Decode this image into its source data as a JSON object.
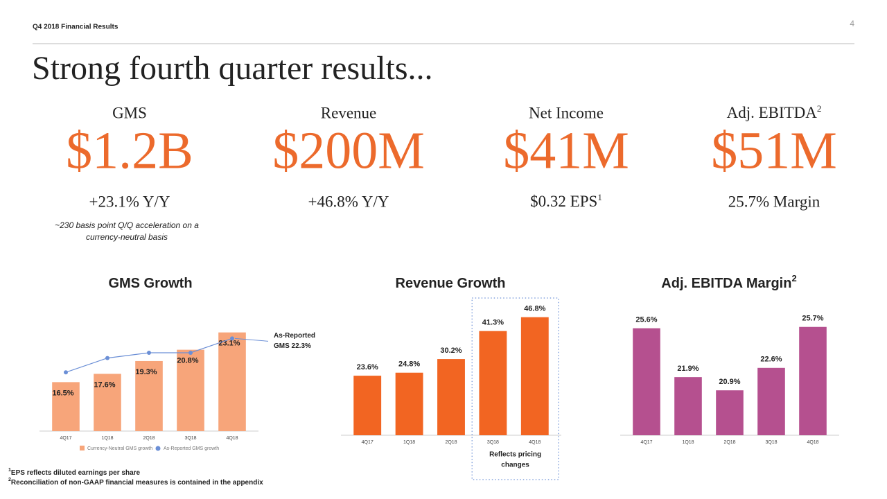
{
  "header": {
    "section": "Q4 2018 Financial Results",
    "page_number": "4",
    "title": "Strong fourth quarter results..."
  },
  "kpis": [
    {
      "label": "GMS",
      "value": "$1.2B",
      "detail": "+23.1% Y/Y",
      "note": [
        "~230 basis point Q/Q acceleration on a",
        "currency-neutral basis"
      ]
    },
    {
      "label": "Revenue",
      "value": "$200M",
      "detail": "+46.8% Y/Y"
    },
    {
      "label": "Net Income",
      "value": "$41M",
      "detail": "$0.32 EPS",
      "detail_sup": "1"
    },
    {
      "label": "Adj. EBITDA",
      "label_sup": "2",
      "value": "$51M",
      "detail": "25.7% Margin"
    }
  ],
  "footnotes": [
    {
      "mark": "1",
      "text": "EPS reflects diluted earnings per share"
    },
    {
      "mark": "2",
      "text": "Reconciliation of non-GAAP financial measures is contained in the appendix"
    }
  ],
  "chart_data": [
    {
      "type": "bar",
      "title": "GMS Growth",
      "categories": [
        "4Q17",
        "1Q18",
        "2Q18",
        "3Q18",
        "4Q18"
      ],
      "series": [
        {
          "name": "Currency-Neutral GMS growth",
          "color": "#f7a57a",
          "values": [
            16.5,
            17.6,
            19.3,
            20.8,
            23.1
          ],
          "value_labels": [
            "16.5%",
            "17.6%",
            "19.3%",
            "20.8%",
            "23.1%"
          ]
        },
        {
          "name": "As-Reported GMS growth",
          "type": "line",
          "color": "#6b8fd6",
          "values": [
            17.8,
            19.7,
            20.4,
            20.4,
            22.3
          ]
        }
      ],
      "ylim": [
        10,
        25
      ],
      "value_label_position": "inside",
      "legend": "bottom",
      "annotation": [
        "As-Reported",
        "GMS 22.3%"
      ]
    },
    {
      "type": "bar",
      "title": "Revenue Growth",
      "categories": [
        "4Q17",
        "1Q18",
        "2Q18",
        "3Q18",
        "4Q18"
      ],
      "values": [
        23.6,
        24.8,
        30.2,
        41.3,
        46.8
      ],
      "value_labels": [
        "23.6%",
        "24.8%",
        "30.2%",
        "41.3%",
        "46.8%"
      ],
      "color": "#f26522",
      "ylim": [
        0,
        50
      ],
      "value_label_position": "above",
      "annotation": [
        "Reflects pricing",
        "changes"
      ]
    },
    {
      "type": "bar",
      "title": "Adj. EBITDA Margin",
      "title_sup": "2",
      "categories": [
        "4Q17",
        "1Q18",
        "2Q18",
        "3Q18",
        "4Q18"
      ],
      "values": [
        25.6,
        21.9,
        20.9,
        22.6,
        25.7
      ],
      "value_labels": [
        "25.6%",
        "21.9%",
        "20.9%",
        "22.6%",
        "25.7%"
      ],
      "color": "#b5508f",
      "ylim": [
        17.5,
        26
      ],
      "value_label_position": "above"
    }
  ]
}
